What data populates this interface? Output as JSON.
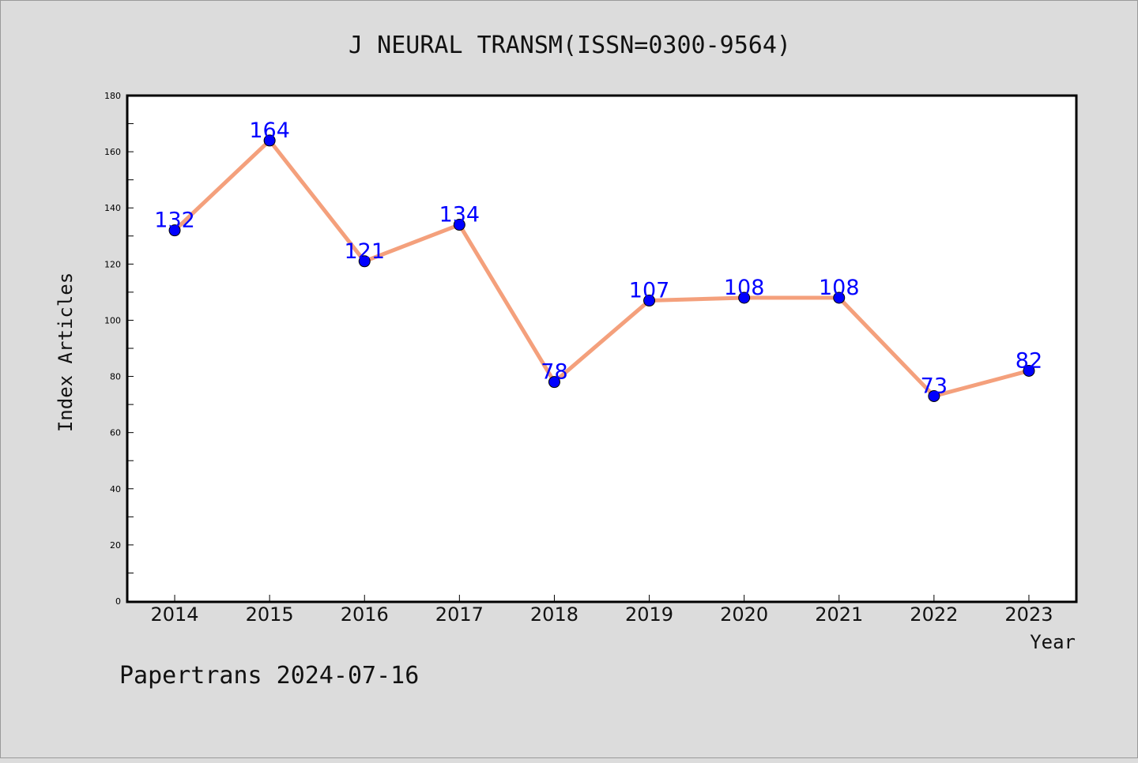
{
  "chart_data": {
    "type": "line",
    "title": "J NEURAL TRANSM(ISSN=0300-9564)",
    "xlabel": "Year",
    "ylabel": "Index Articles",
    "categories": [
      "2014",
      "2015",
      "2016",
      "2017",
      "2018",
      "2019",
      "2020",
      "2021",
      "2022",
      "2023"
    ],
    "values": [
      132,
      164,
      121,
      134,
      78,
      107,
      108,
      108,
      73,
      82
    ],
    "data_labels": [
      "132",
      "164",
      "121",
      "134",
      "78",
      "107",
      "108",
      "108",
      "73",
      "82"
    ],
    "ylim": [
      0,
      180
    ],
    "yticks": [
      "0",
      "20",
      "40",
      "60",
      "80",
      "100",
      "120",
      "140",
      "160",
      "180"
    ],
    "grid": false,
    "line_color": "#f4a07c",
    "marker_color": "#0000ff",
    "label_color": "#0000ff"
  },
  "footer": "Papertrans 2024-07-16"
}
